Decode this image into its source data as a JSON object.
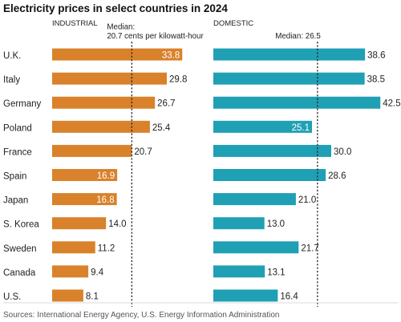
{
  "chart_data": {
    "type": "bar",
    "title": "Electricity prices in select countries in 2024",
    "source": "Sources: International Energy Agency, U.S. Energy Information Administration",
    "categories": [
      "U.K.",
      "Italy",
      "Germany",
      "Poland",
      "France",
      "Spain",
      "Japan",
      "S. Korea",
      "Sweden",
      "Canada",
      "U.S."
    ],
    "series": [
      {
        "name": "INDUSTRIAL",
        "color": "#d9822b",
        "values": [
          33.8,
          29.8,
          26.7,
          25.4,
          20.7,
          16.9,
          16.8,
          14.0,
          11.2,
          9.4,
          8.1
        ],
        "labels": [
          "33.8",
          "29.8",
          "26.7",
          "25.4",
          "20.7",
          "16.9",
          "16.8",
          "14.0",
          "11.2",
          "9.4",
          "8.1"
        ],
        "label_inside": [
          true,
          false,
          false,
          false,
          false,
          true,
          true,
          false,
          false,
          false,
          false
        ],
        "median": 20.7,
        "median_label_lines": [
          "Median:",
          "20.7 cents per kilowatt-hour"
        ]
      },
      {
        "name": "DOMESTIC",
        "color": "#1fa0b4",
        "values": [
          38.6,
          38.5,
          42.5,
          25.1,
          30.0,
          28.6,
          21.0,
          13.0,
          21.7,
          13.1,
          16.4
        ],
        "labels": [
          "38.6",
          "38.5",
          "42.5",
          "25.1",
          "30.0",
          "28.6",
          "21.0",
          "13.0",
          "21.7",
          "13.1",
          "16.4"
        ],
        "label_inside": [
          false,
          false,
          false,
          true,
          false,
          false,
          false,
          false,
          false,
          false,
          false
        ],
        "median": 26.5,
        "median_label_lines": [
          "Median: 26.5"
        ]
      }
    ],
    "grid": false
  }
}
